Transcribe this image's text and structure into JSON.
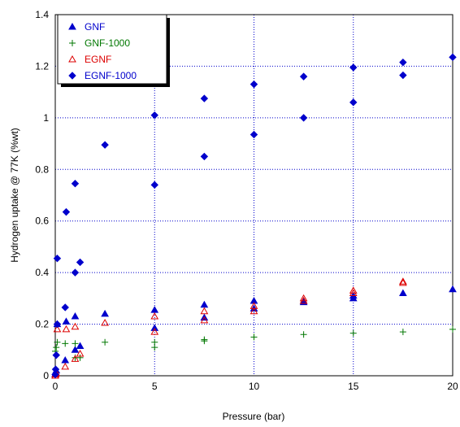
{
  "chart_data": {
    "type": "scatter",
    "title": "",
    "xlabel": "Pressure (bar)",
    "ylabel": "Hydrogen uptake @ 77K (%wt)",
    "xlim": [
      0,
      20
    ],
    "ylim": [
      0,
      1.4
    ],
    "xticks": [
      "0",
      "5",
      "10",
      "15",
      "20"
    ],
    "yticks": [
      "0",
      "0.2",
      "0.4",
      "0.6",
      "0.8",
      "1",
      "1.2",
      "1.4"
    ],
    "grid": true,
    "legend_position": "top-left",
    "series": [
      {
        "name": "GNF",
        "marker": "triangle-filled",
        "color": "#0000CC",
        "points": [
          [
            0,
            0.005
          ],
          [
            0.02,
            0.01
          ],
          [
            0.05,
            0.02
          ],
          [
            0.1,
            0.2
          ],
          [
            0.5,
            0.06
          ],
          [
            0.55,
            0.21
          ],
          [
            1,
            0.1
          ],
          [
            1,
            0.23
          ],
          [
            1.25,
            0.115
          ],
          [
            2.5,
            0.24
          ],
          [
            5,
            0.185
          ],
          [
            5,
            0.255
          ],
          [
            7.5,
            0.225
          ],
          [
            7.5,
            0.275
          ],
          [
            10,
            0.26
          ],
          [
            10,
            0.29
          ],
          [
            12.5,
            0.285
          ],
          [
            12.5,
            0.29
          ],
          [
            15,
            0.3
          ],
          [
            15,
            0.31
          ],
          [
            17.5,
            0.32
          ],
          [
            20,
            0.335
          ]
        ]
      },
      {
        "name": "GNF-1000",
        "marker": "plus",
        "color": "#007700",
        "points": [
          [
            0,
            0.095
          ],
          [
            0.05,
            0.11
          ],
          [
            0.1,
            0.13
          ],
          [
            0.5,
            0.125
          ],
          [
            1,
            0.07
          ],
          [
            1,
            0.125
          ],
          [
            1.25,
            0.07
          ],
          [
            2.5,
            0.13
          ],
          [
            5,
            0.11
          ],
          [
            5,
            0.13
          ],
          [
            7.5,
            0.135
          ],
          [
            7.5,
            0.14
          ],
          [
            10,
            0.15
          ],
          [
            12.5,
            0.16
          ],
          [
            15,
            0.165
          ],
          [
            17.5,
            0.17
          ],
          [
            20,
            0.18
          ]
        ]
      },
      {
        "name": "EGNF",
        "marker": "triangle-open",
        "color": "#DD0000",
        "points": [
          [
            0,
            0.0
          ],
          [
            0.02,
            0.005
          ],
          [
            0.05,
            0.01
          ],
          [
            0.1,
            0.18
          ],
          [
            0.5,
            0.035
          ],
          [
            0.55,
            0.18
          ],
          [
            1,
            0.065
          ],
          [
            1,
            0.19
          ],
          [
            1.25,
            0.085
          ],
          [
            2.5,
            0.205
          ],
          [
            5,
            0.17
          ],
          [
            5,
            0.23
          ],
          [
            7.5,
            0.215
          ],
          [
            7.5,
            0.25
          ],
          [
            10,
            0.25
          ],
          [
            10,
            0.27
          ],
          [
            12.5,
            0.29
          ],
          [
            12.5,
            0.3
          ],
          [
            15,
            0.32
          ],
          [
            15,
            0.33
          ],
          [
            17.5,
            0.36
          ],
          [
            17.5,
            0.365
          ]
        ]
      },
      {
        "name": "EGNF-1000",
        "marker": "diamond-filled",
        "color": "#0000CC",
        "points": [
          [
            0,
            0.005
          ],
          [
            0.02,
            0.025
          ],
          [
            0.05,
            0.08
          ],
          [
            0.1,
            0.2
          ],
          [
            0.1,
            0.455
          ],
          [
            0.5,
            0.265
          ],
          [
            0.55,
            0.635
          ],
          [
            1,
            0.4
          ],
          [
            1,
            0.745
          ],
          [
            1.25,
            0.44
          ],
          [
            2.5,
            0.895
          ],
          [
            5,
            0.74
          ],
          [
            5,
            1.01
          ],
          [
            7.5,
            0.85
          ],
          [
            7.5,
            1.075
          ],
          [
            10,
            0.935
          ],
          [
            10,
            1.13
          ],
          [
            12.5,
            1.0
          ],
          [
            12.5,
            1.16
          ],
          [
            15,
            1.06
          ],
          [
            15,
            1.195
          ],
          [
            17.5,
            1.165
          ],
          [
            17.5,
            1.215
          ],
          [
            20,
            1.235
          ]
        ]
      }
    ]
  }
}
